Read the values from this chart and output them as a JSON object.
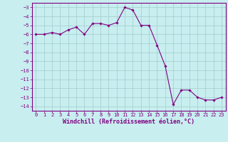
{
  "x": [
    0,
    1,
    2,
    3,
    4,
    5,
    6,
    7,
    8,
    9,
    10,
    11,
    12,
    13,
    14,
    15,
    16,
    17,
    18,
    19,
    20,
    21,
    22,
    23
  ],
  "y": [
    -6.0,
    -6.0,
    -5.8,
    -6.0,
    -5.5,
    -5.2,
    -6.0,
    -4.8,
    -4.8,
    -5.0,
    -4.7,
    -3.0,
    -3.3,
    -5.0,
    -5.0,
    -7.2,
    -9.5,
    -13.8,
    -12.2,
    -12.2,
    -13.0,
    -13.3,
    -13.3,
    -13.0
  ],
  "line_color": "#800080",
  "marker": "D",
  "marker_size": 1.8,
  "bg_color": "#c8eef0",
  "grid_color": "#a0cccc",
  "xlabel": "Windchill (Refroidissement éolien,°C)",
  "ylabel": "",
  "ylim": [
    -14.5,
    -2.5
  ],
  "xlim": [
    -0.5,
    23.5
  ],
  "yticks": [
    -3,
    -4,
    -5,
    -6,
    -7,
    -8,
    -9,
    -10,
    -11,
    -12,
    -13,
    -14
  ],
  "xtick_labels": [
    "0",
    "1",
    "2",
    "3",
    "4",
    "5",
    "6",
    "7",
    "8",
    "9",
    "10",
    "11",
    "12",
    "13",
    "14",
    "15",
    "16",
    "17",
    "18",
    "19",
    "20",
    "21",
    "22",
    "23"
  ],
  "xticks": [
    0,
    1,
    2,
    3,
    4,
    5,
    6,
    7,
    8,
    9,
    10,
    11,
    12,
    13,
    14,
    15,
    16,
    17,
    18,
    19,
    20,
    21,
    22,
    23
  ],
  "tick_color": "#800080",
  "tick_fontsize": 5.0,
  "xlabel_fontsize": 6.0,
  "line_width": 0.8
}
